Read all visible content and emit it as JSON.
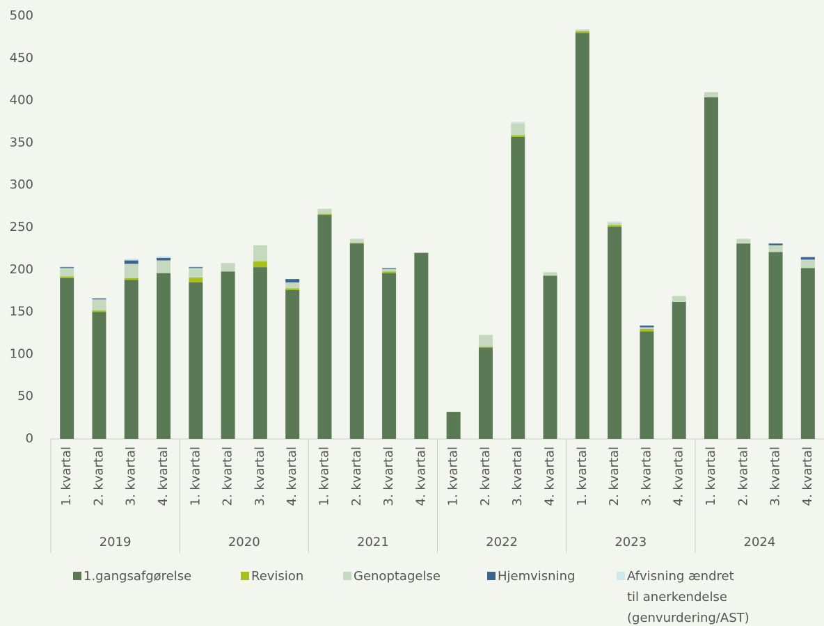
{
  "chart_data": {
    "type": "stacked_bar",
    "categories": [
      "1. kvartal",
      "2. kvartal",
      "3. kvartal",
      "4. kvartal",
      "1. kvartal",
      "2. kvartal",
      "3. kvartal",
      "4. kvartal",
      "1. kvartal",
      "2. kvartal",
      "3. kvartal",
      "4. kvartal",
      "1. kvartal",
      "2. kvartal",
      "3. kvartal",
      "4. kvartal",
      "1. kvartal",
      "2. kvartal",
      "3. kvartal",
      "4. kvartal",
      "1. kvartal",
      "2. kvartal",
      "3. kvartal",
      "4. kvartal"
    ],
    "group_labels": [
      "2019",
      "2020",
      "2021",
      "2022",
      "2023",
      "2024"
    ],
    "series": [
      {
        "name": "1.gangsafgørelse",
        "color": "#5a7a55",
        "values": [
          190,
          150,
          188,
          196,
          185,
          198,
          203,
          176,
          265,
          231,
          196,
          220,
          32,
          108,
          357,
          193,
          480,
          251,
          127,
          162,
          404,
          231,
          221,
          202
        ]
      },
      {
        "name": "Revision",
        "color": "#a8c01a",
        "values": [
          2,
          2,
          2,
          0,
          6,
          0,
          7,
          2,
          1,
          1,
          2,
          0,
          0,
          1,
          2,
          0,
          2,
          2,
          3,
          0,
          0,
          0,
          0,
          0
        ]
      },
      {
        "name": "Genoptagelse",
        "color": "#c5d9bf",
        "values": [
          10,
          13,
          17,
          15,
          11,
          10,
          19,
          7,
          6,
          4,
          3,
          0,
          0,
          14,
          14,
          4,
          2,
          3,
          2,
          7,
          6,
          5,
          8,
          10
        ]
      },
      {
        "name": "Hjemvisning",
        "color": "#3a6590",
        "values": [
          1,
          1,
          4,
          3,
          1,
          0,
          0,
          4,
          0,
          0,
          1,
          0,
          0,
          0,
          0,
          0,
          0,
          0,
          2,
          0,
          0,
          0,
          2,
          3
        ]
      },
      {
        "name": "Afvisning ændret\ntil anerkendelse\n(genvurdering/AST)",
        "color": "#cde8ee",
        "values": [
          1,
          0,
          2,
          2,
          1,
          0,
          0,
          0,
          0,
          1,
          0,
          0,
          0,
          0,
          2,
          0,
          0,
          1,
          0,
          0,
          0,
          1,
          0,
          0
        ]
      }
    ],
    "ylim": [
      0,
      500
    ],
    "yticks": [
      0,
      50,
      100,
      150,
      200,
      250,
      300,
      350,
      400,
      450,
      500
    ],
    "grid": false
  }
}
